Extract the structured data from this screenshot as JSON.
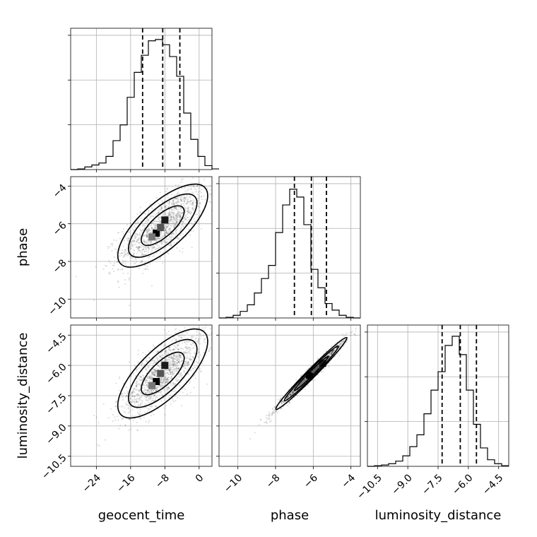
{
  "chart_data": {
    "type": "corner",
    "parameters": [
      {
        "name": "geocent_time",
        "label": "geocent_time",
        "range": [
          -30,
          3
        ],
        "ticks": [
          -24,
          -16,
          -8,
          0
        ],
        "tick_labels": [
          "−24",
          "−16",
          "−8",
          "0"
        ],
        "quantiles": [
          -13.2,
          -8.5,
          -4.5
        ],
        "hist": {
          "edges_start": -30,
          "bin_width": 1.65,
          "values": [
            0,
            0.005,
            0.02,
            0.035,
            0.05,
            0.1,
            0.22,
            0.34,
            0.55,
            0.74,
            0.87,
            0.98,
            0.99,
            0.95,
            0.86,
            0.71,
            0.43,
            0.23,
            0.1,
            0.03,
            0.005
          ]
        }
      },
      {
        "name": "phase",
        "label": "phase",
        "range": [
          -11,
          -3.5
        ],
        "ticks": [
          -10,
          -8,
          -6,
          -4
        ],
        "tick_labels": [
          "−10",
          "−8",
          "−6",
          "−4"
        ],
        "quantiles": [
          -7.0,
          -6.1,
          -5.3
        ],
        "hist": {
          "edges_start": -11,
          "bin_width": 0.375,
          "values": [
            0,
            0.005,
            0.02,
            0.05,
            0.1,
            0.19,
            0.3,
            0.4,
            0.65,
            0.86,
            0.98,
            0.92,
            0.71,
            0.37,
            0.23,
            0.11,
            0.06,
            0.02,
            0.005,
            0
          ]
        }
      },
      {
        "name": "luminosity_distance",
        "label": "luminosity_distance",
        "range": [
          -11,
          -4
        ],
        "ticks": [
          -10.5,
          -9.0,
          -7.5,
          -6.0,
          -4.5
        ],
        "tick_labels": [
          "−10.5",
          "−9.0",
          "−7.5",
          "−6.0",
          "−4.5"
        ],
        "yticks": [
          -10.5,
          -9.0,
          -7.5,
          -6.0,
          -4.5
        ],
        "ytick_labels": [
          "−10.5",
          "−9.0",
          "−7.5",
          "−6.0",
          "−4.5"
        ],
        "quantiles": [
          -7.3,
          -6.4,
          -5.6
        ],
        "hist": {
          "edges_start": -11,
          "bin_width": 0.35,
          "values": [
            0,
            0.005,
            0.01,
            0.02,
            0.04,
            0.08,
            0.15,
            0.24,
            0.4,
            0.58,
            0.72,
            0.92,
            0.99,
            0.85,
            0.58,
            0.32,
            0.14,
            0.05,
            0.02,
            0.005
          ]
        }
      }
    ],
    "pairs": [
      {
        "x": 0,
        "y": 1,
        "mean": [
          -8.5,
          -6.1
        ],
        "sd": [
          5,
          1.05
        ],
        "rho": 0.72,
        "density_peaks": [
          [
            -10,
            -6.5
          ],
          [
            -8,
            -5.8
          ],
          [
            -9,
            -6.2
          ],
          [
            -11,
            -6.7
          ]
        ]
      },
      {
        "x": 0,
        "y": 2,
        "mean": [
          -8.5,
          -6.4
        ],
        "sd": [
          5,
          1.05
        ],
        "rho": 0.72,
        "density_peaks": [
          [
            -10,
            -6.8
          ],
          [
            -8,
            -6.0
          ],
          [
            -9,
            -6.4
          ],
          [
            -11,
            -7.0
          ]
        ]
      },
      {
        "x": 1,
        "y": 2,
        "mean": [
          -6.1,
          -6.4
        ],
        "sd": [
          0.9,
          0.85
        ],
        "rho": 0.985,
        "density_peaks": [
          [
            -6.2,
            -6.5
          ],
          [
            -5.5,
            -5.9
          ],
          [
            -5.9,
            -6.2
          ],
          [
            -6.6,
            -6.9
          ]
        ]
      }
    ],
    "grid": true
  }
}
